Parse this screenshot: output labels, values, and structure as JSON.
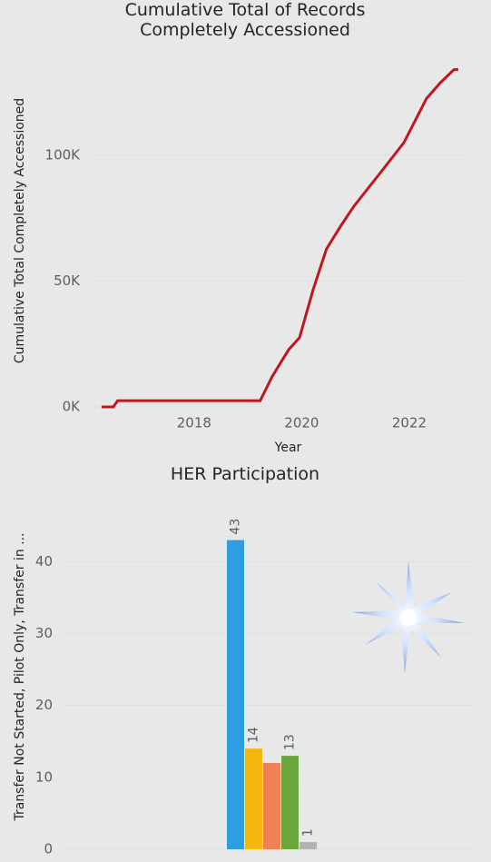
{
  "chart_data": [
    {
      "type": "line",
      "title": "Cumulative Total of Records Completely Accessioned",
      "x_label": "Year",
      "y_label": "Cumulative Total Completely Accessioned",
      "x": [
        2016.28,
        2016.5,
        2016.58,
        2019.23,
        2019.45,
        2019.76,
        2019.96,
        2020.21,
        2020.46,
        2020.72,
        2020.97,
        2021.48,
        2021.9,
        2022.32,
        2022.57,
        2022.83,
        2022.91
      ],
      "series": [
        {
          "name": "Cumulative Total Completely Accessioned",
          "color": "#c0161c",
          "values": [
            0,
            0,
            2500,
            2500,
            12000,
            22800,
            27500,
            46400,
            62700,
            71700,
            79700,
            93500,
            105000,
            122500,
            128600,
            134000,
            134000
          ]
        }
      ],
      "xlim": [
        2016.08,
        2023.08
      ],
      "xticks": [
        2018,
        2020,
        2022
      ],
      "ylim": [
        0,
        140000
      ],
      "yticks": [
        {
          "value": 0,
          "label": "0K"
        },
        {
          "value": 50000,
          "label": "50K"
        },
        {
          "value": 100000,
          "label": "100K"
        }
      ],
      "grid": true
    },
    {
      "type": "bar",
      "title": "HER Participation",
      "y_label": "Transfer Not Started, Pilot Only, Transfer in ...",
      "categories": [
        null,
        null,
        null,
        null,
        null
      ],
      "values": [
        43,
        14,
        12,
        13,
        1
      ],
      "value_labels": [
        "43",
        "14",
        null,
        "13",
        "1"
      ],
      "colors": [
        "#2d9fe0",
        "#f3b70f",
        "#ef8157",
        "#6aa63b",
        "#b3b3b3"
      ],
      "ylim": [
        0,
        48
      ],
      "yticks": [
        0,
        10,
        20,
        30,
        40
      ],
      "grid": true
    }
  ]
}
